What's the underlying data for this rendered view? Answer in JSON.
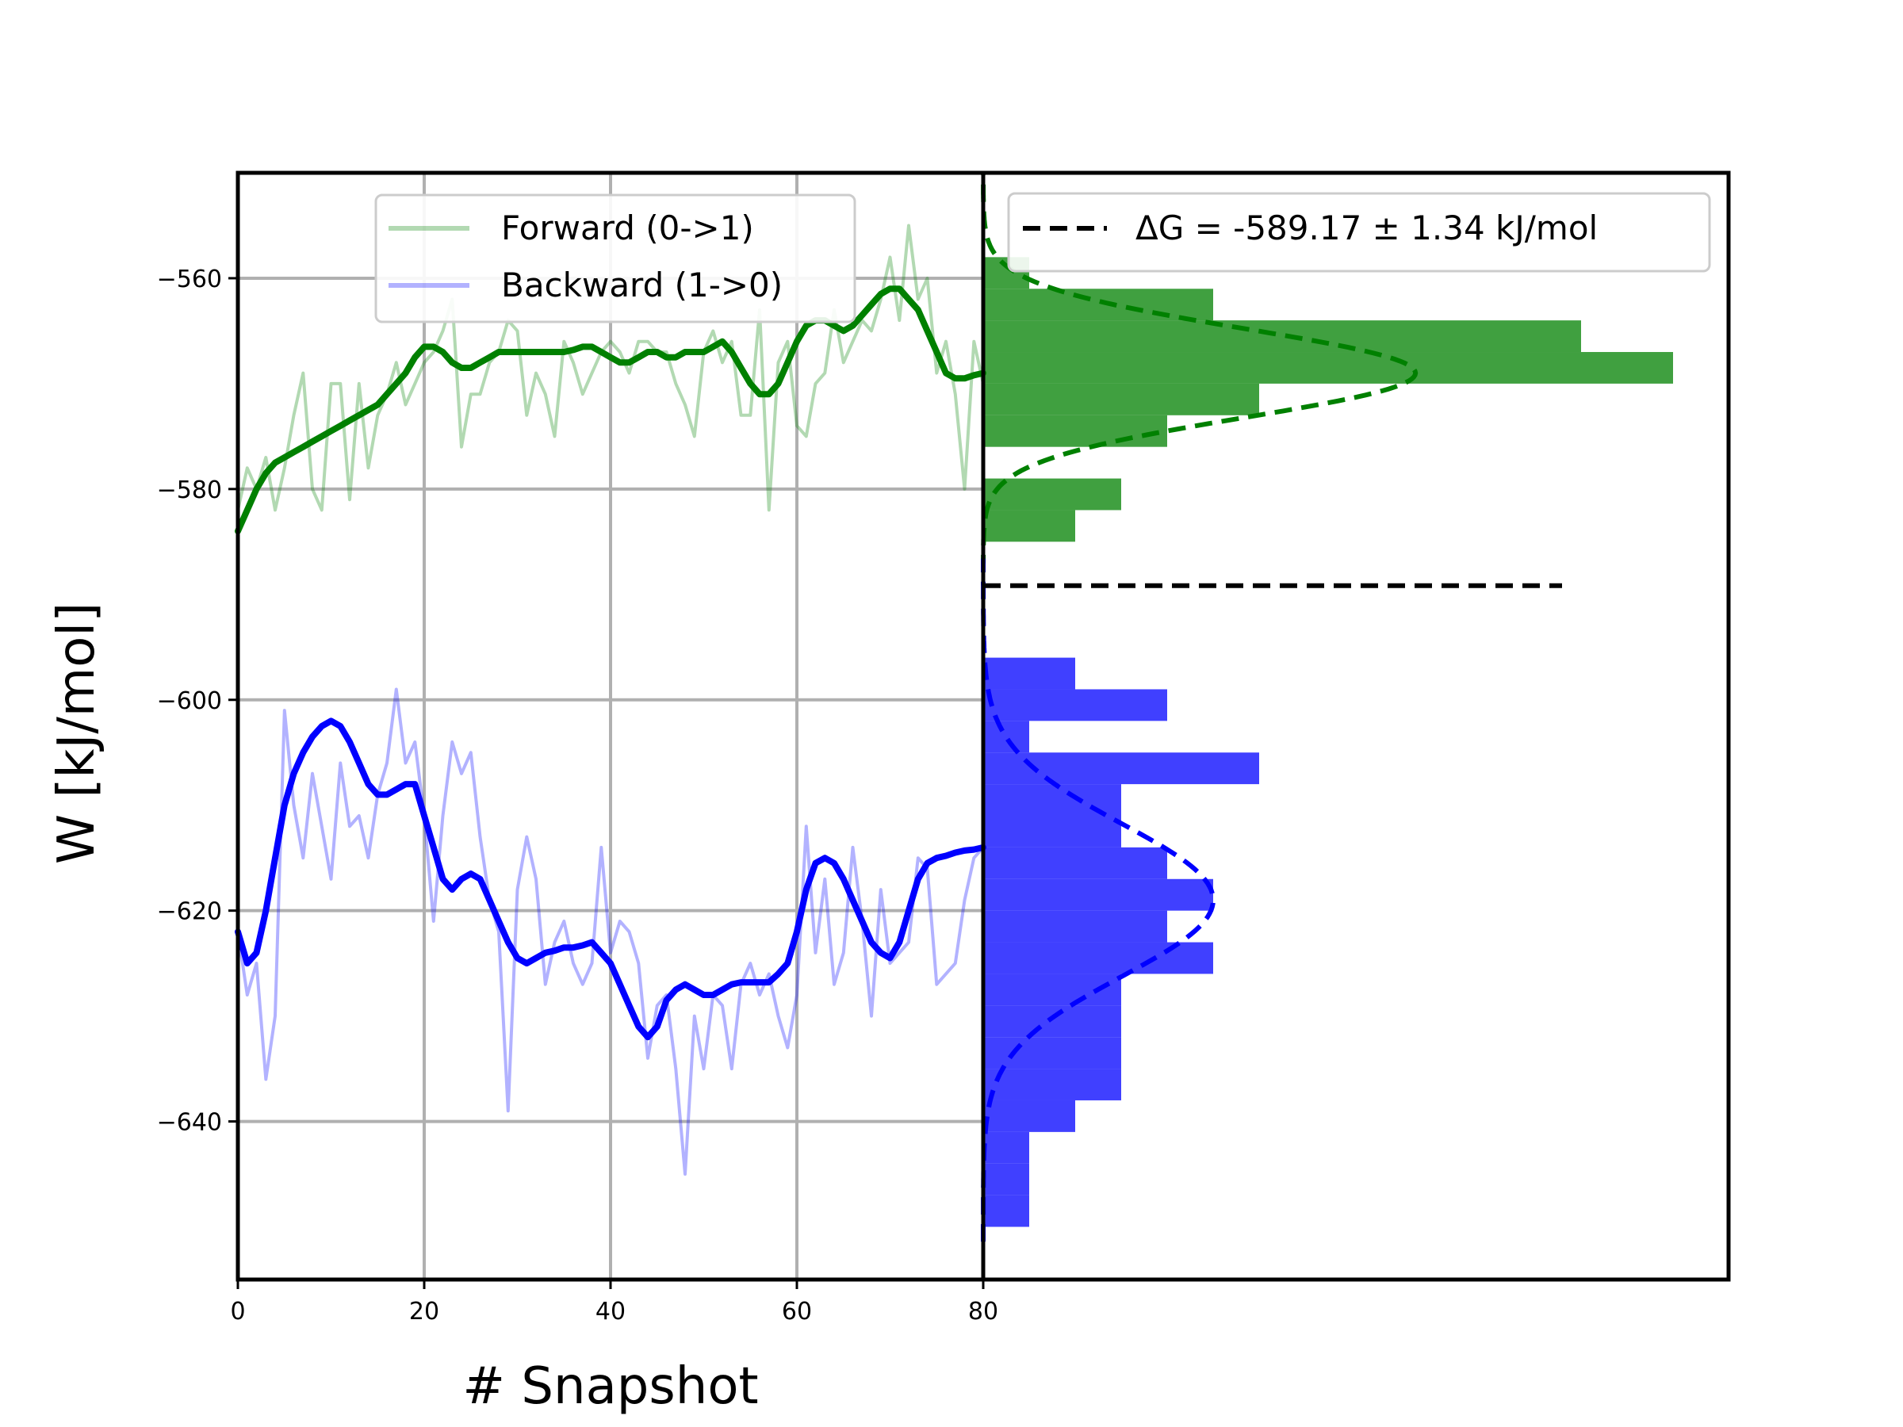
{
  "chart_data": {
    "type": "line",
    "xlabel": "# Snapshot",
    "ylabel": "W [kJ/mol]",
    "xlim": [
      0,
      80
    ],
    "ylim": [
      -655,
      -550
    ],
    "xticks": [
      0,
      20,
      40,
      60,
      80
    ],
    "yticks": [
      -560,
      -580,
      -600,
      -620,
      -640
    ],
    "grid": true,
    "legend_placement": "top-center",
    "delta_g": {
      "label": "ΔG = -589.17 ± 1.34 kJ/mol",
      "value": -589.17,
      "color": "#000000"
    },
    "series": [
      {
        "name": "Forward (0->1)",
        "color": "#008000",
        "raw_alpha": 0.3,
        "raw": [
          -582,
          -578,
          -580,
          -577,
          -582,
          -578,
          -573,
          -569,
          -580,
          -582,
          -570,
          -570,
          -581,
          -570,
          -578,
          -573,
          -571,
          -568,
          -572,
          -570,
          -568,
          -567,
          -565,
          -562,
          -576,
          -571,
          -571,
          -568,
          -567,
          -564,
          -565,
          -573,
          -569,
          -571,
          -575,
          -566,
          -568,
          -571,
          -569,
          -567,
          -566,
          -567,
          -569,
          -566,
          -566,
          -567,
          -567,
          -570,
          -572,
          -575,
          -567,
          -565,
          -568,
          -566,
          -573,
          -573,
          -563,
          -582,
          -568,
          -566,
          -574,
          -575,
          -570,
          -569,
          -563,
          -568,
          -566,
          -564,
          -565,
          -562,
          -558,
          -564,
          -555,
          -562,
          -560,
          -569,
          -566,
          -571,
          -580,
          -566,
          -570
        ],
        "smooth": [
          -584,
          -582,
          -580,
          -578.5,
          -577.5,
          -577,
          -576.5,
          -576,
          -575.5,
          -575,
          -574.5,
          -574,
          -573.5,
          -573,
          -572.5,
          -572,
          -571,
          -570,
          -569,
          -567.5,
          -566.5,
          -566.5,
          -567,
          -568,
          -568.5,
          -568.5,
          -568,
          -567.5,
          -567,
          -567,
          -567,
          -567,
          -567,
          -567,
          -567,
          -567,
          -566.8,
          -566.5,
          -566.5,
          -567,
          -567.5,
          -568,
          -568,
          -567.5,
          -567,
          -567,
          -567.5,
          -567.5,
          -567,
          -567,
          -567,
          -566.5,
          -566,
          -567,
          -568.5,
          -570,
          -571,
          -571,
          -570,
          -568,
          -566,
          -564.5,
          -564,
          -564,
          -564.5,
          -565,
          -564.5,
          -563.5,
          -562.5,
          -561.5,
          -561,
          -561,
          -562,
          -563,
          -565,
          -567,
          -569,
          -569.5,
          -569.5,
          -569.2,
          -569
        ]
      },
      {
        "name": "Backward (1->0)",
        "color": "#0000ff",
        "raw_alpha": 0.3,
        "raw": [
          -622,
          -628,
          -625,
          -636,
          -630,
          -601,
          -610,
          -615,
          -607,
          -612,
          -617,
          -606,
          -612,
          -611,
          -615,
          -609,
          -606,
          -599,
          -606,
          -604,
          -611,
          -621,
          -611,
          -604,
          -607,
          -605,
          -613,
          -619,
          -622,
          -639,
          -618,
          -613,
          -617,
          -627,
          -623,
          -621,
          -625,
          -627,
          -625,
          -614,
          -624,
          -621,
          -622,
          -625,
          -634,
          -629,
          -628,
          -635,
          -645,
          -630,
          -635,
          -628,
          -629,
          -635,
          -627,
          -625,
          -628,
          -626,
          -630,
          -633,
          -628,
          -612,
          -624,
          -617,
          -627,
          -624,
          -614,
          -621,
          -630,
          -618,
          -625,
          -624,
          -623,
          -615,
          -616,
          -627,
          -626,
          -625,
          -619,
          -615,
          -614
        ],
        "smooth": [
          -622,
          -625,
          -624,
          -620,
          -615,
          -610,
          -607,
          -605,
          -603.5,
          -602.5,
          -602,
          -602.5,
          -604,
          -606,
          -608,
          -609,
          -609,
          -608.5,
          -608,
          -608,
          -611,
          -614,
          -617,
          -618,
          -617,
          -616.5,
          -617,
          -619,
          -621,
          -623,
          -624.5,
          -625,
          -624.5,
          -624,
          -623.8,
          -623.5,
          -623.5,
          -623.3,
          -623,
          -624,
          -625,
          -627,
          -629,
          -631,
          -632,
          -631,
          -628.5,
          -627.5,
          -627,
          -627.5,
          -628,
          -628,
          -627.5,
          -627,
          -626.8,
          -626.8,
          -626.8,
          -626.8,
          -626,
          -625,
          -622,
          -618,
          -615.5,
          -615,
          -615.5,
          -617,
          -619,
          -621,
          -623,
          -624,
          -624.5,
          -623,
          -620,
          -617,
          -615.5,
          -615,
          -614.8,
          -614.5,
          -614.3,
          -614.2,
          -614
        ]
      }
    ],
    "histograms": [
      {
        "name": "forward",
        "color": "#008000",
        "alpha": 0.75,
        "bin_edges": [
          -588,
          -585,
          -582,
          -579,
          -576,
          -573,
          -570,
          -567,
          -564,
          -561,
          -558
        ],
        "counts": [
          0,
          2,
          3,
          0,
          4,
          6,
          15,
          13,
          5,
          1,
          0
        ],
        "gauss_mu": -569,
        "gauss_sigma": 4.2,
        "gauss_peak": 9.4
      },
      {
        "name": "backward",
        "color": "#0000ff",
        "alpha": 0.75,
        "bin_edges": [
          -650,
          -647,
          -644,
          -641,
          -638,
          -635,
          -632,
          -629,
          -626,
          -623,
          -620,
          -617,
          -614,
          -611,
          -608,
          -605,
          -602,
          -599,
          -596,
          -593
        ],
        "counts": [
          1,
          1,
          1,
          2,
          3,
          3,
          3,
          3,
          5,
          4,
          5,
          4,
          3,
          3,
          6,
          1,
          4,
          2,
          0,
          1
        ],
        "gauss_mu": -619,
        "gauss_sigma": 7.2,
        "gauss_peak": 5.0
      }
    ]
  }
}
